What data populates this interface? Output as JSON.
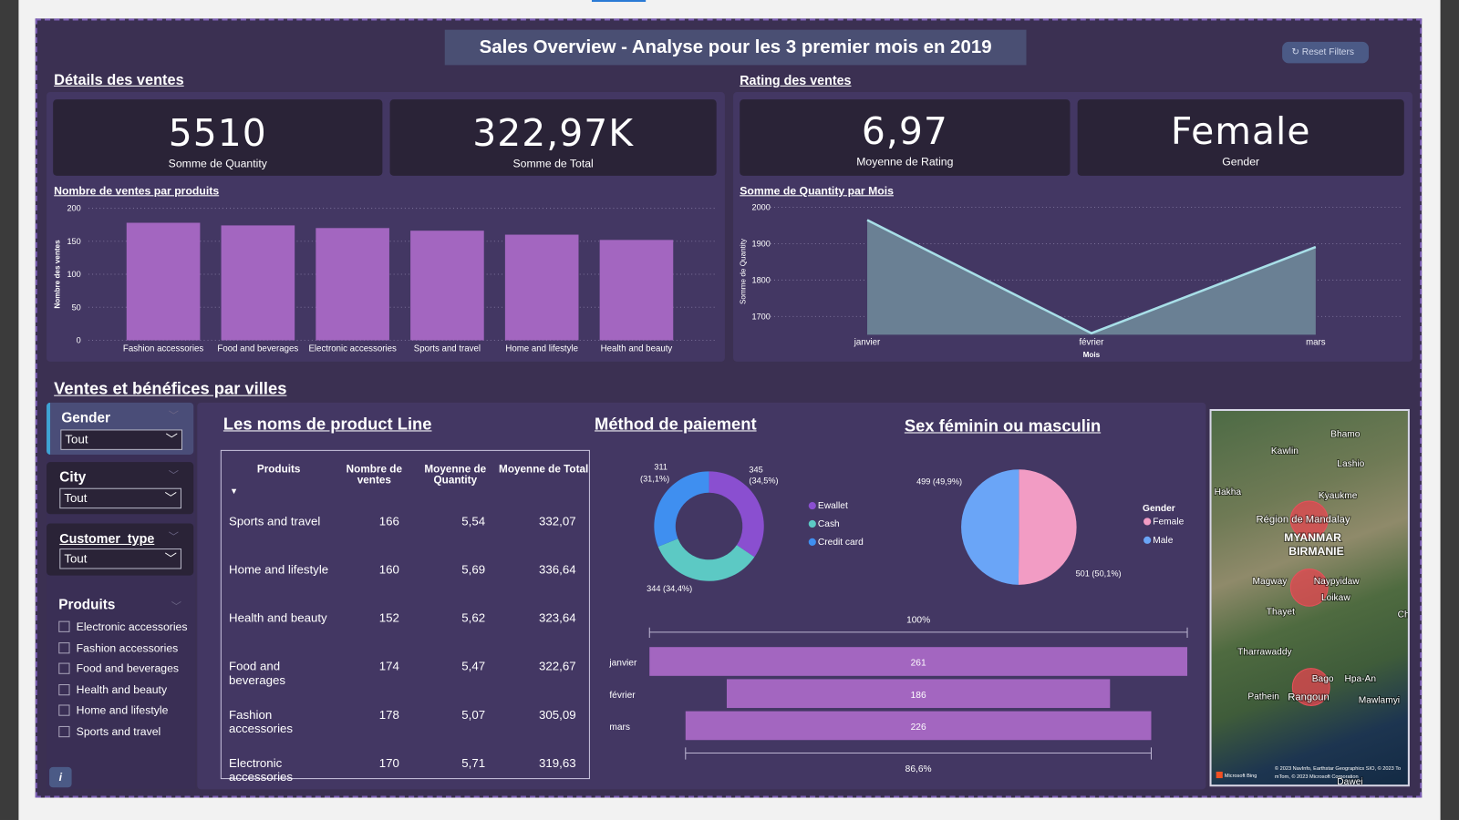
{
  "title": "Sales Overview - Analyse pour les 3 premier mois en 2019",
  "reset_filters": "Reset Filters",
  "sections": {
    "details": "Détails des ventes",
    "rating": "Rating des ventes",
    "villes": "Ventes et bénéfices par villes"
  },
  "kpis": [
    {
      "value": "5510",
      "label": "Somme de Quantity"
    },
    {
      "value": "322,97K",
      "label": "Somme de Total"
    },
    {
      "value": "6,97",
      "label": "Moyenne de Rating"
    },
    {
      "value": "Female",
      "label": "Gender"
    }
  ],
  "colors": {
    "background": "#3b3052",
    "panel": "#433763",
    "bar": "#a366c0",
    "area": "#6a8094",
    "line": "#a8dfe8",
    "ewallet": "#8a4fd0",
    "cash": "#5cc9c4",
    "credit_card": "#3f8ff0",
    "female": "#f29cc4",
    "male": "#6aa5f7"
  },
  "chart_data": [
    {
      "type": "bar",
      "title": "Nombre de ventes par produits",
      "xlabel": "",
      "ylabel": "Nombre des ventes",
      "ylim": [
        0,
        200
      ],
      "yticks": [
        0,
        50,
        100,
        150,
        200
      ],
      "grid": true,
      "categories": [
        "Fashion accessories",
        "Food and beverages",
        "Electronic accessories",
        "Sports and travel",
        "Home and lifestyle",
        "Health and beauty"
      ],
      "values": [
        178,
        174,
        170,
        166,
        160,
        152
      ]
    },
    {
      "type": "area",
      "title": "Somme de Quantity par Mois",
      "xlabel": "Mois",
      "ylabel": "Somme de Quantity",
      "ylim": [
        1650,
        2000
      ],
      "yticks": [
        1700,
        1800,
        1900,
        2000
      ],
      "grid": true,
      "categories": [
        "janvier",
        "février",
        "mars"
      ],
      "values": [
        1965,
        1654,
        1891
      ]
    },
    {
      "type": "pie",
      "subtype": "donut",
      "title": "Méthod de paiement",
      "legend": "right",
      "series": [
        {
          "name": "Ewallet",
          "value": 345,
          "label": "345 (34,5%)"
        },
        {
          "name": "Cash",
          "value": 344,
          "label": "344 (34,4%)"
        },
        {
          "name": "Credit card",
          "value": 311,
          "label": "311 (31,1%)"
        }
      ]
    },
    {
      "type": "pie",
      "title": "Sex féminin ou masculin",
      "legend": "right",
      "legend_title": "Gender",
      "series": [
        {
          "name": "Female",
          "value": 501,
          "label": "501 (50,1%)"
        },
        {
          "name": "Male",
          "value": 499,
          "label": "499 (49,9%)"
        }
      ]
    },
    {
      "type": "bar",
      "subtype": "funnel",
      "categories": [
        "janvier",
        "février",
        "mars"
      ],
      "values": [
        261,
        186,
        226
      ],
      "top_label": "100%",
      "bottom_label": "86,6%"
    }
  ],
  "slicers": [
    {
      "title": "Gender",
      "value": "Tout"
    },
    {
      "title": "City",
      "value": "Tout"
    },
    {
      "title": "Customer_type",
      "value": "Tout"
    }
  ],
  "produits_slicer": {
    "title": "Produits",
    "items": [
      "Electronic accessories",
      "Fashion accessories",
      "Food and beverages",
      "Health and beauty",
      "Home and lifestyle",
      "Sports and travel"
    ]
  },
  "table": {
    "title": "Les noms de product Line ",
    "headers": [
      "Produits",
      "Nombre de ventes",
      "Moyenne de Quantity",
      "Moyenne de Total"
    ],
    "rows": [
      [
        "Sports and travel",
        "166",
        "5,54",
        "332,07"
      ],
      [
        "Home and lifestyle",
        "160",
        "5,69",
        "336,64"
      ],
      [
        "Health and beauty",
        "152",
        "5,62",
        "323,64"
      ],
      [
        "Food and beverages",
        "174",
        "5,47",
        "322,67"
      ],
      [
        "Fashion accessories",
        "178",
        "5,07",
        "305,09"
      ],
      [
        "Electronic accessories",
        "170",
        "5,71",
        "319,63"
      ]
    ]
  },
  "map": {
    "labels": [
      "Bhamo",
      "Kawlin",
      "Lashio",
      "Hakha",
      "Kyaukme",
      "Région de Mandalay",
      "MYANMAR",
      "BIRMANIE",
      "Magway",
      "Naypyidaw",
      "Loikaw",
      "Thayet",
      "Chiang",
      "Tharrawaddy",
      "Bago",
      "Hpa-An",
      "Pathein",
      "Rangoun",
      "Mawlamyi",
      "Dawei"
    ],
    "attribution": "© 2023 NavInfo, Earthstar Geographics SIO, © 2023 TomTom, © 2023 Microsoft Corporation",
    "brand": "Microsoft Bing"
  },
  "info_icon": "i"
}
